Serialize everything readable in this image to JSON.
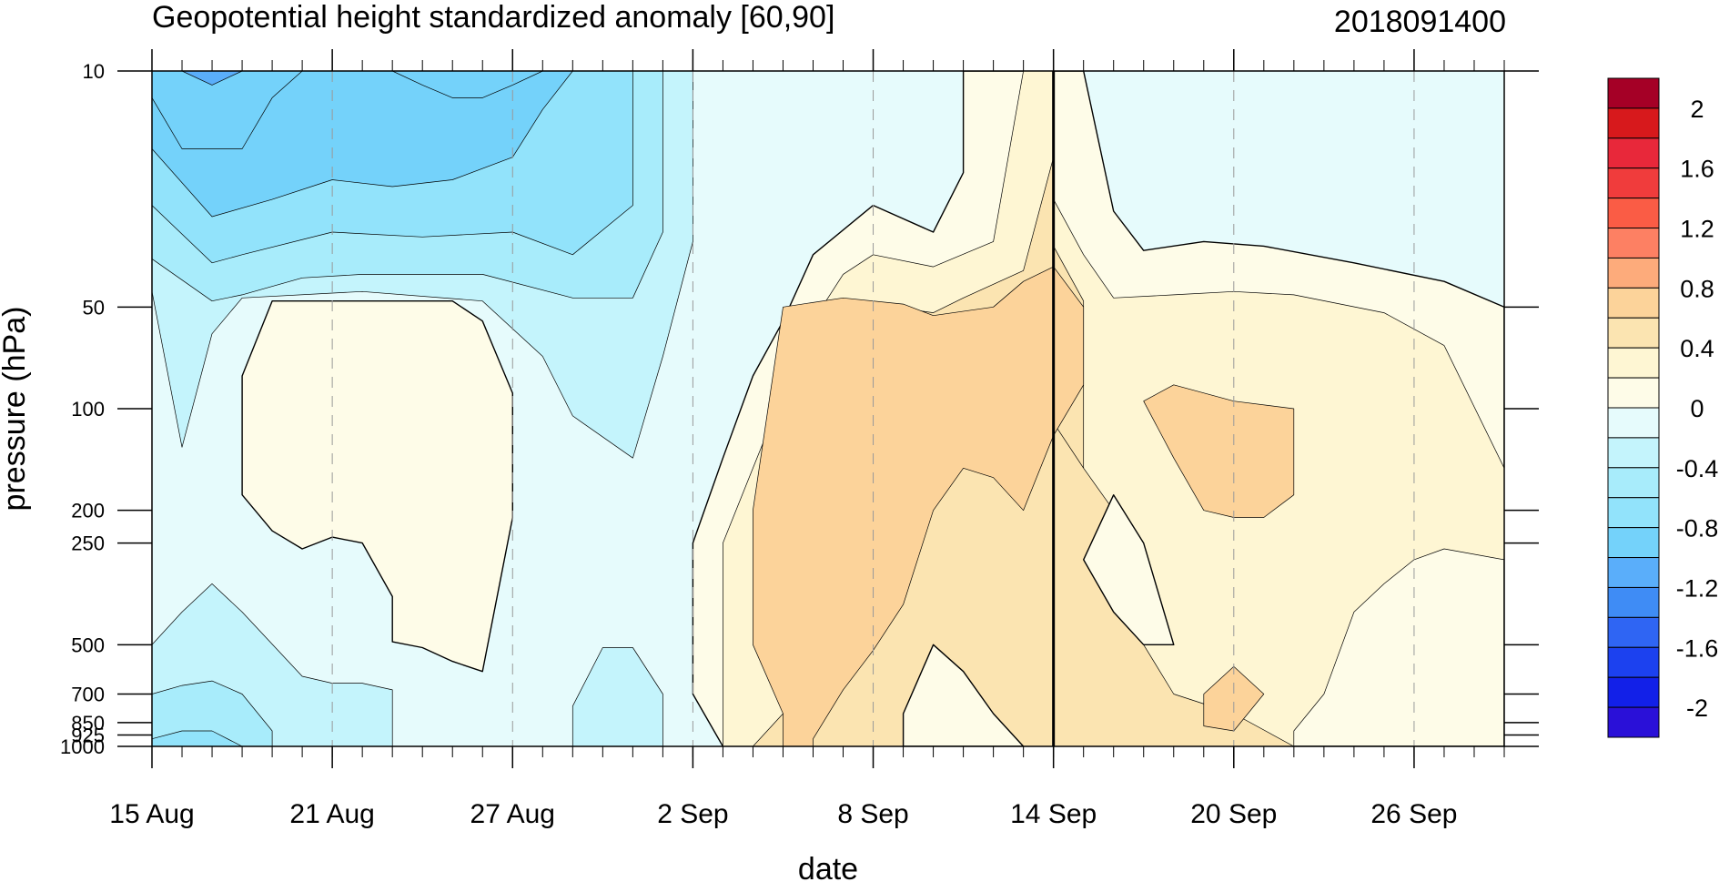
{
  "chart_data": {
    "type": "heatmap",
    "subtype": "filled-contour",
    "title": "Geopotential height standardized anomaly [60,90]",
    "date_label": "2018091400",
    "xlabel": "date",
    "ylabel": "pressure (hPa)",
    "x_ticks": [
      "15 Aug",
      "21 Aug",
      "27 Aug",
      "2 Sep",
      "8 Sep",
      "14 Sep",
      "20 Sep",
      "26 Sep"
    ],
    "x_range": [
      "2018-08-15",
      "2018-09-29"
    ],
    "current_date_marker": "2018-09-14",
    "y_ticks": [
      10,
      50,
      100,
      200,
      250,
      500,
      700,
      850,
      925,
      1000
    ],
    "y_range": [
      1000,
      10
    ],
    "y_scale": "log, reversed",
    "grid": "dashed vertical lines at date ticks",
    "legend": "right",
    "colorbar": {
      "levels": [
        -2.2,
        -2,
        -1.8,
        -1.6,
        -1.4,
        -1.2,
        -1,
        -0.8,
        -0.6,
        -0.4,
        -0.2,
        0,
        0.2,
        0.4,
        0.6,
        0.8,
        1,
        1.2,
        1.4,
        1.6,
        1.8,
        2,
        2.2
      ],
      "labels": [
        "2",
        "1.6",
        "1.2",
        "0.8",
        "0.4",
        "0",
        "-0.4",
        "-0.8",
        "-1.2",
        "-1.6",
        "-2"
      ],
      "label_values": [
        2,
        1.6,
        1.2,
        0.8,
        0.4,
        0,
        -0.4,
        -0.8,
        -1.2,
        -1.6,
        -2
      ],
      "colors_top_to_bottom": [
        "#a50026",
        "#d7191c",
        "#e8283a",
        "#f03c3c",
        "#fa5c45",
        "#fd8063",
        "#fdab7b",
        "#fcd39a",
        "#fbe4b1",
        "#fef6d3",
        "#fefce8",
        "#e6fbfc",
        "#c4f4fc",
        "#a8ecfb",
        "#92e3fb",
        "#74d2fa",
        "#5aaefa",
        "#3f8cf5",
        "#2f65f3",
        "#1c41ef",
        "#1220e8",
        "#2a10d8"
      ]
    },
    "fill_colors": {
      "-1.4": "#5aaefa",
      "-1.2": "#74d2fa",
      "-1.0": "#74d2fa",
      "-0.8": "#92e3fb",
      "-0.6": "#a8ecfb",
      "-0.4": "#c4f4fc",
      "-0.2": "#e6fbfc",
      "0.0": "#fefce8",
      "0.2": "#fef6d3",
      "0.4": "#fbe4b1",
      "0.6": "#fcd39a"
    },
    "regions": [
      {
        "level": -0.2,
        "points": [
          [
            "2018-08-15",
            10
          ],
          [
            "2018-09-29",
            10
          ],
          [
            "2018-09-29",
            1000
          ],
          [
            "2018-08-15",
            1000
          ]
        ]
      },
      {
        "level": -0.4,
        "points": [
          [
            "2018-08-15",
            10
          ],
          [
            "2018-09-02",
            10
          ],
          [
            "2018-09-02",
            32
          ],
          [
            "2018-09-01",
            70
          ],
          [
            "2018-08-31",
            140
          ],
          [
            "2018-08-29",
            105
          ],
          [
            "2018-08-28",
            70
          ],
          [
            "2018-08-26",
            48
          ],
          [
            "2018-08-22",
            45
          ],
          [
            "2018-08-18",
            47
          ],
          [
            "2018-08-17",
            60
          ],
          [
            "2018-08-16",
            130
          ],
          [
            "2018-08-15",
            45
          ]
        ]
      },
      {
        "level": -0.6,
        "points": [
          [
            "2018-08-15",
            10
          ],
          [
            "2018-09-01",
            10
          ],
          [
            "2018-09-01",
            30
          ],
          [
            "2018-08-31",
            47
          ],
          [
            "2018-08-29",
            47
          ],
          [
            "2018-08-26",
            40
          ],
          [
            "2018-08-22",
            40
          ],
          [
            "2018-08-20",
            41
          ],
          [
            "2018-08-18",
            46
          ],
          [
            "2018-08-17",
            48
          ],
          [
            "2018-08-15",
            36
          ]
        ]
      },
      {
        "level": -0.8,
        "points": [
          [
            "2018-08-15",
            10
          ],
          [
            "2018-08-31",
            10
          ],
          [
            "2018-08-31",
            25
          ],
          [
            "2018-08-29",
            35
          ],
          [
            "2018-08-27",
            30
          ],
          [
            "2018-08-24",
            31
          ],
          [
            "2018-08-21",
            30
          ],
          [
            "2018-08-18",
            35
          ],
          [
            "2018-08-17",
            37
          ],
          [
            "2018-08-15",
            25
          ]
        ]
      },
      {
        "level": -1.0,
        "points": [
          [
            "2018-08-15",
            10
          ],
          [
            "2018-08-29",
            10
          ],
          [
            "2018-08-28",
            13
          ],
          [
            "2018-08-27",
            18
          ],
          [
            "2018-08-25",
            21
          ],
          [
            "2018-08-23",
            22
          ],
          [
            "2018-08-21",
            21
          ],
          [
            "2018-08-19",
            24
          ],
          [
            "2018-08-17",
            27
          ],
          [
            "2018-08-15",
            17
          ]
        ]
      },
      {
        "level": -1.2,
        "points": [
          [
            "2018-08-15",
            10
          ],
          [
            "2018-08-28",
            10
          ],
          [
            "2018-08-27",
            11
          ],
          [
            "2018-08-26",
            12
          ],
          [
            "2018-08-25",
            12
          ],
          [
            "2018-08-24",
            11
          ],
          [
            "2018-08-23",
            10
          ],
          [
            "2018-08-20",
            10
          ],
          [
            "2018-08-19",
            12
          ],
          [
            "2018-08-18",
            17
          ],
          [
            "2018-08-16",
            17
          ],
          [
            "2018-08-15",
            12
          ]
        ]
      },
      {
        "level": -1.4,
        "points": [
          [
            "2018-08-16",
            10
          ],
          [
            "2018-08-18",
            10
          ],
          [
            "2018-08-17",
            11
          ],
          [
            "2018-08-16",
            10
          ]
        ]
      },
      {
        "level": -0.4,
        "points": [
          [
            "2018-08-15",
            500
          ],
          [
            "2018-08-16",
            400
          ],
          [
            "2018-08-17",
            330
          ],
          [
            "2018-08-18",
            400
          ],
          [
            "2018-08-20",
            620
          ],
          [
            "2018-08-21",
            650
          ],
          [
            "2018-08-22",
            650
          ],
          [
            "2018-08-23",
            680
          ],
          [
            "2018-08-23",
            1000
          ],
          [
            "2018-08-15",
            1000
          ]
        ]
      },
      {
        "level": -0.6,
        "points": [
          [
            "2018-08-15",
            700
          ],
          [
            "2018-08-16",
            660
          ],
          [
            "2018-08-17",
            640
          ],
          [
            "2018-08-18",
            700
          ],
          [
            "2018-08-19",
            900
          ],
          [
            "2018-08-19",
            1000
          ],
          [
            "2018-08-15",
            1000
          ]
        ]
      },
      {
        "level": -0.8,
        "points": [
          [
            "2018-08-15",
            950
          ],
          [
            "2018-08-16",
            900
          ],
          [
            "2018-08-17",
            900
          ],
          [
            "2018-08-18",
            1000
          ],
          [
            "2018-08-15",
            1000
          ]
        ]
      },
      {
        "level": -0.4,
        "points": [
          [
            "2018-08-30",
            510
          ],
          [
            "2018-08-31",
            510
          ],
          [
            "2018-09-01",
            700
          ],
          [
            "2018-09-01",
            1000
          ],
          [
            "2018-08-29",
            1000
          ],
          [
            "2018-08-29",
            760
          ]
        ]
      },
      {
        "level": 0.0,
        "points": [
          [
            "2018-08-19",
            48
          ],
          [
            "2018-08-21",
            48
          ],
          [
            "2018-08-23",
            48
          ],
          [
            "2018-08-25",
            48
          ],
          [
            "2018-08-26",
            55
          ],
          [
            "2018-08-27",
            90
          ],
          [
            "2018-08-27",
            210
          ],
          [
            "2018-08-26",
            600
          ],
          [
            "2018-08-25",
            560
          ],
          [
            "2018-08-24",
            510
          ],
          [
            "2018-08-23",
            490
          ],
          [
            "2018-08-23",
            360
          ],
          [
            "2018-08-22",
            250
          ],
          [
            "2018-08-21",
            240
          ],
          [
            "2018-08-20",
            260
          ],
          [
            "2018-08-19",
            230
          ],
          [
            "2018-08-18",
            180
          ],
          [
            "2018-08-18",
            80
          ]
        ]
      },
      {
        "level": 0.0,
        "points": [
          [
            "2018-09-11",
            10
          ],
          [
            "2018-09-15",
            10
          ],
          [
            "2018-09-16",
            26
          ],
          [
            "2018-09-17",
            34
          ],
          [
            "2018-09-19",
            32
          ],
          [
            "2018-09-21",
            33
          ],
          [
            "2018-09-24",
            37
          ],
          [
            "2018-09-27",
            42
          ],
          [
            "2018-09-29",
            50
          ],
          [
            "2018-09-29",
            1000
          ],
          [
            "2018-09-03",
            1000
          ],
          [
            "2018-09-02",
            700
          ],
          [
            "2018-09-02",
            360
          ],
          [
            "2018-09-02",
            250
          ],
          [
            "2018-09-03",
            140
          ],
          [
            "2018-09-04",
            80
          ],
          [
            "2018-09-05",
            55
          ],
          [
            "2018-09-06",
            35
          ],
          [
            "2018-09-08",
            25
          ],
          [
            "2018-09-10",
            30
          ],
          [
            "2018-09-11",
            20
          ]
        ]
      },
      {
        "level": 0.2,
        "points": [
          [
            "2018-09-13",
            10
          ],
          [
            "2018-09-14",
            10
          ],
          [
            "2018-09-14",
            24
          ],
          [
            "2018-09-15",
            35
          ],
          [
            "2018-09-16",
            47
          ],
          [
            "2018-09-18",
            46
          ],
          [
            "2018-09-20",
            45
          ],
          [
            "2018-09-22",
            46
          ],
          [
            "2018-09-25",
            52
          ],
          [
            "2018-09-27",
            65
          ],
          [
            "2018-09-29",
            150
          ],
          [
            "2018-09-29",
            280
          ],
          [
            "2018-09-27",
            260
          ],
          [
            "2018-09-26",
            280
          ],
          [
            "2018-09-25",
            330
          ],
          [
            "2018-09-24",
            400
          ],
          [
            "2018-09-23",
            700
          ],
          [
            "2018-09-22",
            900
          ],
          [
            "2018-09-22",
            1000
          ],
          [
            "2018-09-03",
            1000
          ],
          [
            "2018-09-03",
            700
          ],
          [
            "2018-09-03",
            500
          ],
          [
            "2018-09-03",
            250
          ],
          [
            "2018-09-04",
            150
          ],
          [
            "2018-09-05",
            90
          ],
          [
            "2018-09-06",
            55
          ],
          [
            "2018-09-07",
            40
          ],
          [
            "2018-09-08",
            35
          ],
          [
            "2018-09-10",
            38
          ],
          [
            "2018-09-12",
            32
          ]
        ]
      },
      {
        "level": 0.4,
        "points": [
          [
            "2018-09-14",
            18
          ],
          [
            "2018-09-14",
            33
          ],
          [
            "2018-09-15",
            48
          ],
          [
            "2018-09-15",
            110
          ],
          [
            "2018-09-15",
            1000
          ],
          [
            "2018-09-04",
            1000
          ],
          [
            "2018-09-05",
            800
          ],
          [
            "2018-09-05",
            600
          ],
          [
            "2018-09-05",
            300
          ],
          [
            "2018-09-05",
            200
          ],
          [
            "2018-09-06",
            120
          ],
          [
            "2018-09-06",
            80
          ],
          [
            "2018-09-07",
            55
          ],
          [
            "2018-09-08",
            49
          ],
          [
            "2018-09-10",
            52
          ],
          [
            "2018-09-11",
            47
          ],
          [
            "2018-09-13",
            39
          ]
        ]
      },
      {
        "level": 0.4,
        "points": [
          [
            "2018-09-14",
            110
          ],
          [
            "2018-09-15",
            150
          ],
          [
            "2018-09-16",
            200
          ],
          [
            "2018-09-17",
            500
          ],
          [
            "2018-09-18",
            700
          ],
          [
            "2018-09-20",
            800
          ],
          [
            "2018-09-22",
            1000
          ],
          [
            "2018-09-14",
            1000
          ]
        ]
      },
      {
        "level": 0.6,
        "points": [
          [
            "2018-09-05",
            50
          ],
          [
            "2018-09-07",
            47
          ],
          [
            "2018-09-09",
            49
          ],
          [
            "2018-09-10",
            53
          ],
          [
            "2018-09-12",
            50
          ],
          [
            "2018-09-13",
            42
          ],
          [
            "2018-09-14",
            38
          ],
          [
            "2018-09-15",
            50
          ],
          [
            "2018-09-15",
            85
          ],
          [
            "2018-09-14",
            120
          ],
          [
            "2018-09-13",
            200
          ],
          [
            "2018-09-12",
            160
          ],
          [
            "2018-09-11",
            150
          ],
          [
            "2018-09-10",
            200
          ],
          [
            "2018-09-09",
            380
          ],
          [
            "2018-09-08",
            520
          ],
          [
            "2018-09-07",
            680
          ],
          [
            "2018-09-06",
            950
          ],
          [
            "2018-09-06",
            1000
          ],
          [
            "2018-09-05",
            1000
          ],
          [
            "2018-09-05",
            800
          ],
          [
            "2018-09-04",
            500
          ],
          [
            "2018-09-04",
            300
          ],
          [
            "2018-09-04",
            200
          ]
        ]
      },
      {
        "level": 0.6,
        "points": [
          [
            "2018-09-18",
            85
          ],
          [
            "2018-09-20",
            95
          ],
          [
            "2018-09-22",
            100
          ],
          [
            "2018-09-22",
            180
          ],
          [
            "2018-09-21",
            210
          ],
          [
            "2018-09-20",
            210
          ],
          [
            "2018-09-19",
            200
          ],
          [
            "2018-09-18",
            140
          ],
          [
            "2018-09-17",
            95
          ]
        ]
      },
      {
        "level": 0.6,
        "points": [
          [
            "2018-09-20",
            580
          ],
          [
            "2018-09-21",
            700
          ],
          [
            "2018-09-20",
            900
          ],
          [
            "2018-09-19",
            870
          ],
          [
            "2018-09-19",
            700
          ]
        ]
      },
      {
        "level": 0.0,
        "points": [
          [
            "2018-09-16",
            180
          ],
          [
            "2018-09-17",
            250
          ],
          [
            "2018-09-18",
            500
          ],
          [
            "2018-09-17",
            500
          ],
          [
            "2018-09-16",
            400
          ],
          [
            "2018-09-15",
            280
          ]
        ]
      },
      {
        "level": 0.0,
        "points": [
          [
            "2018-09-10",
            500
          ],
          [
            "2018-09-11",
            600
          ],
          [
            "2018-09-12",
            800
          ],
          [
            "2018-09-13",
            1000
          ],
          [
            "2018-09-09",
            1000
          ],
          [
            "2018-09-09",
            800
          ]
        ]
      }
    ]
  }
}
